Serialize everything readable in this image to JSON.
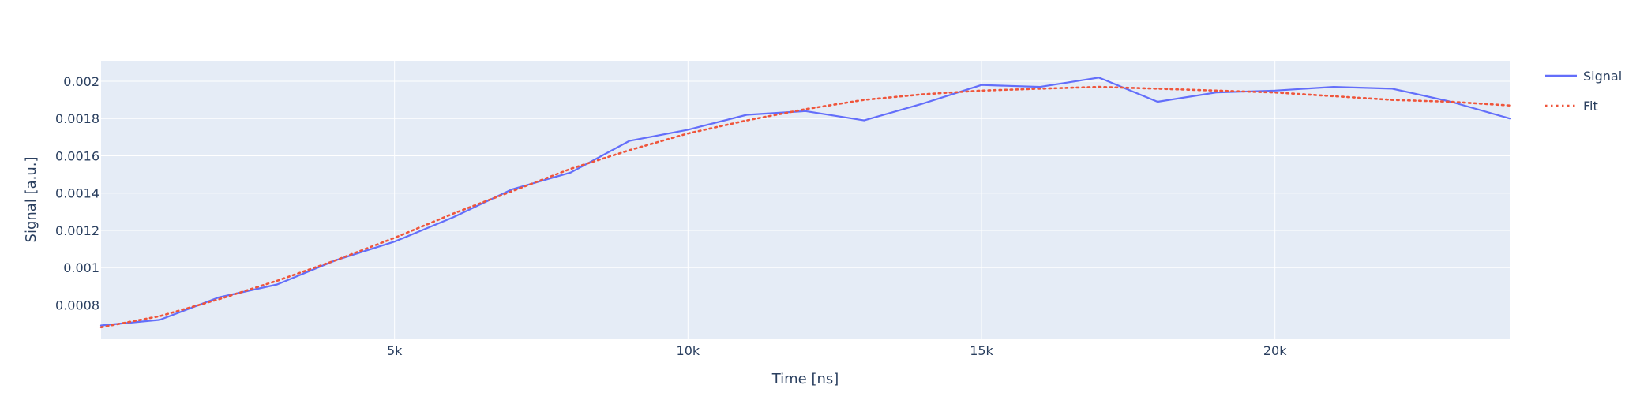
{
  "chart_data": {
    "type": "line",
    "title": "",
    "xlabel": "Time [ns]",
    "ylabel": "Signal [a.u.]",
    "xlim": [
      0,
      24000
    ],
    "ylim": [
      0.00062,
      0.00211
    ],
    "xticks": [
      5000,
      10000,
      15000,
      20000
    ],
    "xtick_labels": [
      "5k",
      "10k",
      "15k",
      "20k"
    ],
    "yticks": [
      0.0008,
      0.001,
      0.0012,
      0.0014,
      0.0016,
      0.0018,
      0.002
    ],
    "ytick_labels": [
      "0.0008",
      "0.001",
      "0.0012",
      "0.0014",
      "0.0016",
      "0.0018",
      "0.002"
    ],
    "grid": true,
    "legend_position": "top-right",
    "colors": {
      "plot_bg": "#e5ecf6",
      "grid": "#ffffff",
      "text": "#2a3f5f"
    },
    "series": [
      {
        "name": "Signal",
        "color": "#636efa",
        "dash": "solid",
        "x": [
          0,
          1000,
          2000,
          3000,
          4000,
          5000,
          6000,
          7000,
          8000,
          9000,
          10000,
          11000,
          12000,
          13000,
          14000,
          15000,
          16000,
          17000,
          18000,
          19000,
          20000,
          21000,
          22000,
          23000,
          24000
        ],
        "y": [
          0.00069,
          0.00072,
          0.00084,
          0.00091,
          0.00104,
          0.00114,
          0.00127,
          0.00142,
          0.00151,
          0.00168,
          0.00174,
          0.00182,
          0.00184,
          0.00179,
          0.00188,
          0.00198,
          0.00197,
          0.00202,
          0.00189,
          0.00194,
          0.00195,
          0.00197,
          0.00196,
          0.00189,
          0.0018
        ]
      },
      {
        "name": "Fit",
        "color": "#ef553b",
        "dash": "dot",
        "x": [
          0,
          1000,
          2000,
          3000,
          4000,
          5000,
          6000,
          7000,
          8000,
          9000,
          10000,
          11000,
          12000,
          13000,
          14000,
          15000,
          16000,
          17000,
          18000,
          19000,
          20000,
          21000,
          22000,
          23000,
          24000
        ],
        "y": [
          0.00068,
          0.00074,
          0.00083,
          0.00093,
          0.00104,
          0.00116,
          0.00129,
          0.00141,
          0.00153,
          0.00163,
          0.00172,
          0.00179,
          0.00185,
          0.0019,
          0.00193,
          0.00195,
          0.00196,
          0.00197,
          0.00196,
          0.00195,
          0.00194,
          0.00192,
          0.0019,
          0.00189,
          0.00187
        ]
      }
    ]
  }
}
